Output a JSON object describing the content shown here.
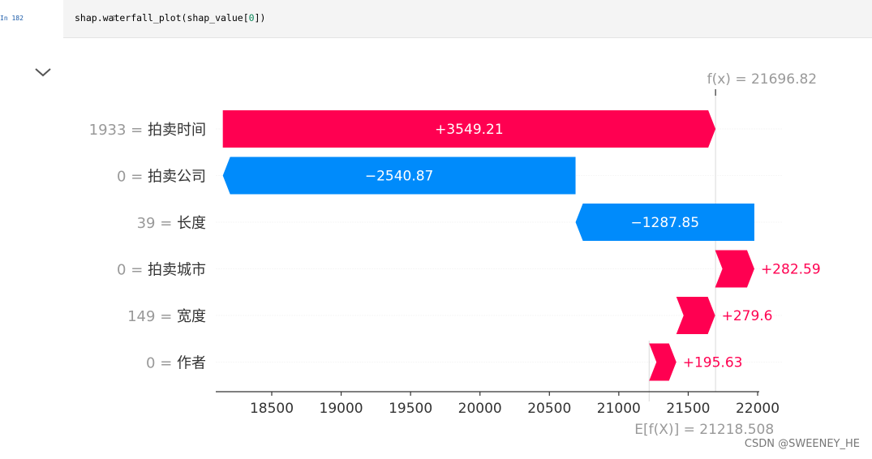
{
  "cell": {
    "prompt": "In 182",
    "line_number": "1",
    "code_prefix": "shap.waterfall_plot(shap_value[",
    "code_index": "0",
    "code_suffix": "])"
  },
  "chart_data": {
    "type": "waterfall",
    "fx_label": "f(x) = 21696.82",
    "ex_label": "E[f(X)] = 21218.508",
    "base_value": 21218.508,
    "final_value": 21696.82,
    "xlim": [
      18100,
      22000
    ],
    "xticks": [
      "18500",
      "19000",
      "19500",
      "20000",
      "20500",
      "21000",
      "21500",
      "22000"
    ],
    "tick_values": [
      18500,
      19000,
      19500,
      20000,
      20500,
      21000,
      21500,
      22000
    ],
    "features": [
      {
        "label": "1933 = 拍卖时间",
        "value_text": "1933 =",
        "name": "拍卖时间",
        "contribution": 3549.21,
        "text": "+3549.21"
      },
      {
        "label": "0 = 拍卖公司",
        "value_text": "0 =",
        "name": "拍卖公司",
        "contribution": -2540.87,
        "text": "−2540.87"
      },
      {
        "label": "39 = 长度",
        "value_text": "39 =",
        "name": "长度",
        "contribution": -1287.85,
        "text": "−1287.85"
      },
      {
        "label": "0 = 拍卖城市",
        "value_text": "0 =",
        "name": "拍卖城市",
        "contribution": 282.59,
        "text": "+282.59"
      },
      {
        "label": "149 = 宽度",
        "value_text": "149 =",
        "name": "宽度",
        "contribution": 279.6,
        "text": "+279.6"
      },
      {
        "label": "0 = 作者",
        "value_text": "0 =",
        "name": "作者",
        "contribution": 195.63,
        "text": "+195.63"
      }
    ],
    "colors": {
      "positive": "#ff0051",
      "negative": "#008bfb"
    },
    "grid": false
  },
  "watermark": "CSDN @SWEENEY_HE"
}
